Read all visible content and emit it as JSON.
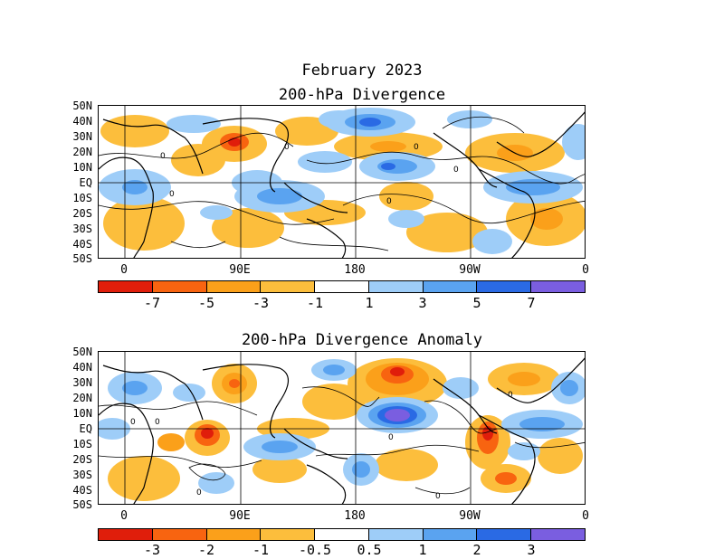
{
  "figure": {
    "title": "February 2023"
  },
  "panels": [
    {
      "title": "200-hPa Divergence",
      "lat_labels": [
        "50N",
        "40N",
        "30N",
        "20N",
        "10N",
        "EQ",
        "10S",
        "20S",
        "30S",
        "40S",
        "50S"
      ],
      "lon_labels": [
        "0",
        "90E",
        "180",
        "90W",
        "0"
      ],
      "colorbar": {
        "colors": [
          "#e01e0b",
          "#f86410",
          "#fba01a",
          "#fcbe3c",
          "#ffffff",
          "#9ecdf8",
          "#5aa3f0",
          "#2a6ae4",
          "#7a5ee0"
        ],
        "labels": [
          "-7",
          "-5",
          "-3",
          "-1",
          "1",
          "3",
          "5",
          "7"
        ]
      },
      "contour_label": "0"
    },
    {
      "title": "200-hPa Divergence Anomaly",
      "lat_labels": [
        "50N",
        "40N",
        "30N",
        "20N",
        "10N",
        "EQ",
        "10S",
        "20S",
        "30S",
        "40S",
        "50S"
      ],
      "lon_labels": [
        "0",
        "90E",
        "180",
        "90W",
        "0"
      ],
      "colorbar": {
        "colors": [
          "#e01e0b",
          "#f86410",
          "#fba01a",
          "#fcbe3c",
          "#ffffff",
          "#9ecdf8",
          "#5aa3f0",
          "#2a6ae4",
          "#7a5ee0"
        ],
        "labels": [
          "-3",
          "-2",
          "-1",
          "-0.5",
          "0.5",
          "1",
          "2",
          "3"
        ]
      },
      "contour_label": "0"
    }
  ]
}
